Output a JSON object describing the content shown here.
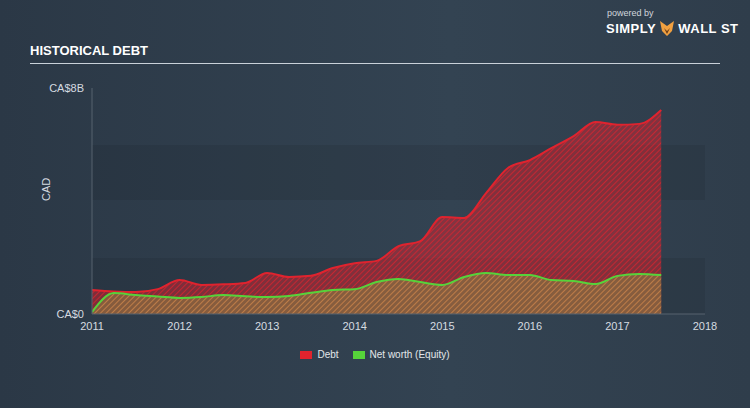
{
  "chart_data": {
    "type": "area",
    "title": "HISTORICAL DEBT",
    "annotations": [
      "powered by",
      "SIMPLY",
      "WALL ST"
    ],
    "y_label": "CAD",
    "x": [
      2011,
      2011.25,
      2011.5,
      2011.75,
      2012,
      2012.25,
      2012.5,
      2012.75,
      2013,
      2013.25,
      2013.5,
      2013.75,
      2014,
      2014.25,
      2014.5,
      2014.75,
      2015,
      2015.25,
      2015.5,
      2015.75,
      2016,
      2016.25,
      2016.5,
      2016.75,
      2017,
      2017.25,
      2017.5
    ],
    "series": [
      {
        "name": "Debt",
        "color": "#e0232e",
        "values": [
          0.85,
          0.8,
          0.78,
          0.88,
          1.2,
          1.03,
          1.05,
          1.1,
          1.45,
          1.31,
          1.35,
          1.63,
          1.8,
          1.88,
          2.4,
          2.58,
          3.43,
          3.4,
          4.28,
          5.17,
          5.45,
          5.88,
          6.3,
          6.8,
          6.7,
          6.73,
          7.22
        ]
      },
      {
        "name": "Net worth (Equity)",
        "color": "#56d33a",
        "values": [
          0.07,
          0.74,
          0.67,
          0.62,
          0.57,
          0.6,
          0.67,
          0.63,
          0.6,
          0.64,
          0.75,
          0.85,
          0.88,
          1.13,
          1.24,
          1.13,
          1.03,
          1.31,
          1.45,
          1.38,
          1.38,
          1.2,
          1.17,
          1.06,
          1.35,
          1.42,
          1.38
        ]
      }
    ],
    "xlim": [
      2011,
      2018
    ],
    "xticks": [
      2011,
      2012,
      2013,
      2014,
      2015,
      2016,
      2017,
      2018
    ],
    "ylim": [
      0,
      8
    ],
    "yticks": [
      {
        "value": 0,
        "label": "CA$0"
      },
      {
        "value": 8,
        "label": "CA$8B"
      }
    ],
    "grid": false,
    "legend": "bottom"
  }
}
